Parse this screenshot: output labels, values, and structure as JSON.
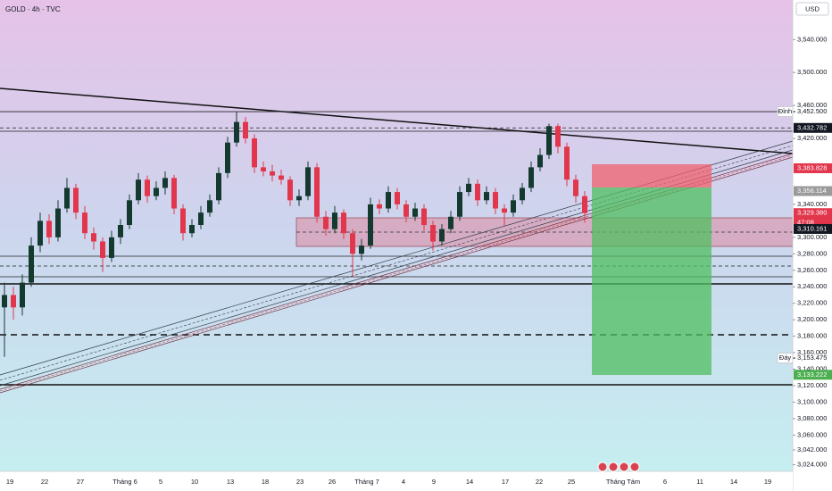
{
  "chart_data": {
    "type": "candlestick",
    "title": "GOLD · 4h · TVC",
    "currency": "USD",
    "up_color": "#143a30",
    "down_color": "#e2364c",
    "ylim": [
      3016,
      3588
    ],
    "yticks": [
      {
        "value": 3540,
        "label": "3,540.000"
      },
      {
        "value": 3500,
        "label": "3,500.000"
      },
      {
        "value": 3460,
        "label": "3,460.000"
      },
      {
        "value": 3420,
        "label": "3,420.000"
      },
      {
        "value": 3340,
        "label": "3,340.000"
      },
      {
        "value": 3300,
        "label": "3,300.000"
      },
      {
        "value": 3280,
        "label": "3,280.000"
      },
      {
        "value": 3260,
        "label": "3,260.000"
      },
      {
        "value": 3240,
        "label": "3,240.000"
      },
      {
        "value": 3220,
        "label": "3,220.000"
      },
      {
        "value": 3200,
        "label": "3,200.000"
      },
      {
        "value": 3180,
        "label": "3,180.000"
      },
      {
        "value": 3160,
        "label": "3,160.000"
      },
      {
        "value": 3140,
        "label": "3,140.000"
      },
      {
        "value": 3120,
        "label": "3,120.000"
      },
      {
        "value": 3100,
        "label": "3,100.000"
      },
      {
        "value": 3080,
        "label": "3,080.000"
      },
      {
        "value": 3060,
        "label": "3,060.000"
      },
      {
        "value": 3042,
        "label": "3,042.000"
      },
      {
        "value": 3024,
        "label": "3,024.000"
      }
    ],
    "x_labels": [
      "19",
      "22",
      "27",
      "Tháng 6",
      "5",
      "10",
      "13",
      "18",
      "23",
      "26",
      "Tháng 7",
      "4",
      "9",
      "14",
      "17",
      "22",
      "25",
      "Tháng Tám",
      "6",
      "11",
      "14",
      "19"
    ],
    "price_tags": [
      {
        "value": 3452.5,
        "label": "3,452.500",
        "note": "Đỉnh",
        "color": "none"
      },
      {
        "value": 3432.782,
        "label": "3,432.782",
        "color": "#131722"
      },
      {
        "value": 3383.828,
        "label": "3,383.828",
        "color": "#e2364c"
      },
      {
        "value": 3356.114,
        "label": "3,356.114",
        "color": "#9a9a9a"
      },
      {
        "value": 3329.38,
        "label": "3,329.380",
        "note": "47:08",
        "color": "#e2364c"
      },
      {
        "value": 3310.161,
        "label": "3,310.161",
        "color": "#131722"
      },
      {
        "value": 3153.475,
        "label": "3,153.475",
        "note": "Đáy",
        "color": "none"
      },
      {
        "value": 3133.222,
        "label": "3,133.222",
        "color": "#4caf50"
      }
    ],
    "candles": [
      [
        3215,
        3245,
        3155,
        3230
      ],
      [
        3230,
        3240,
        3200,
        3215
      ],
      [
        3215,
        3255,
        3205,
        3245
      ],
      [
        3245,
        3300,
        3240,
        3290
      ],
      [
        3290,
        3330,
        3282,
        3320
      ],
      [
        3320,
        3328,
        3292,
        3300
      ],
      [
        3300,
        3345,
        3295,
        3335
      ],
      [
        3335,
        3372,
        3330,
        3360
      ],
      [
        3360,
        3365,
        3322,
        3330
      ],
      [
        3330,
        3338,
        3298,
        3305
      ],
      [
        3305,
        3312,
        3285,
        3295
      ],
      [
        3295,
        3300,
        3258,
        3275
      ],
      [
        3275,
        3308,
        3270,
        3300
      ],
      [
        3300,
        3322,
        3292,
        3315
      ],
      [
        3315,
        3352,
        3310,
        3345
      ],
      [
        3345,
        3378,
        3340,
        3370
      ],
      [
        3370,
        3375,
        3342,
        3350
      ],
      [
        3350,
        3368,
        3345,
        3360
      ],
      [
        3360,
        3380,
        3352,
        3372
      ],
      [
        3372,
        3376,
        3328,
        3335
      ],
      [
        3335,
        3340,
        3296,
        3305
      ],
      [
        3305,
        3322,
        3300,
        3315
      ],
      [
        3315,
        3338,
        3310,
        3330
      ],
      [
        3330,
        3352,
        3325,
        3345
      ],
      [
        3345,
        3385,
        3340,
        3378
      ],
      [
        3378,
        3422,
        3372,
        3415
      ],
      [
        3415,
        3452,
        3410,
        3440
      ],
      [
        3440,
        3446,
        3414,
        3420
      ],
      [
        3420,
        3425,
        3378,
        3385
      ],
      [
        3385,
        3392,
        3374,
        3380
      ],
      [
        3380,
        3388,
        3368,
        3375
      ],
      [
        3375,
        3382,
        3364,
        3370
      ],
      [
        3370,
        3374,
        3338,
        3345
      ],
      [
        3345,
        3358,
        3338,
        3350
      ],
      [
        3350,
        3392,
        3345,
        3385
      ],
      [
        3385,
        3390,
        3318,
        3325
      ],
      [
        3325,
        3332,
        3302,
        3310
      ],
      [
        3310,
        3338,
        3305,
        3330
      ],
      [
        3330,
        3334,
        3298,
        3305
      ],
      [
        3305,
        3310,
        3252,
        3280
      ],
      [
        3280,
        3298,
        3272,
        3290
      ],
      [
        3290,
        3348,
        3286,
        3340
      ],
      [
        3340,
        3346,
        3328,
        3335
      ],
      [
        3335,
        3362,
        3330,
        3355
      ],
      [
        3355,
        3360,
        3334,
        3340
      ],
      [
        3340,
        3345,
        3318,
        3325
      ],
      [
        3325,
        3342,
        3320,
        3335
      ],
      [
        3335,
        3340,
        3308,
        3315
      ],
      [
        3315,
        3320,
        3284,
        3295
      ],
      [
        3295,
        3316,
        3290,
        3310
      ],
      [
        3310,
        3332,
        3305,
        3325
      ],
      [
        3325,
        3362,
        3320,
        3355
      ],
      [
        3355,
        3372,
        3350,
        3365
      ],
      [
        3365,
        3370,
        3338,
        3345
      ],
      [
        3345,
        3362,
        3340,
        3355
      ],
      [
        3355,
        3360,
        3328,
        3335
      ],
      [
        3335,
        3340,
        3314,
        3330
      ],
      [
        3330,
        3352,
        3325,
        3345
      ],
      [
        3345,
        3366,
        3340,
        3360
      ],
      [
        3360,
        3392,
        3355,
        3385
      ],
      [
        3385,
        3408,
        3380,
        3400
      ],
      [
        3400,
        3438,
        3395,
        3435
      ],
      [
        3435,
        3438,
        3402,
        3410
      ],
      [
        3410,
        3415,
        3362,
        3370
      ],
      [
        3370,
        3376,
        3342,
        3350
      ],
      [
        3350,
        3356,
        3318,
        3329.38
      ]
    ]
  }
}
